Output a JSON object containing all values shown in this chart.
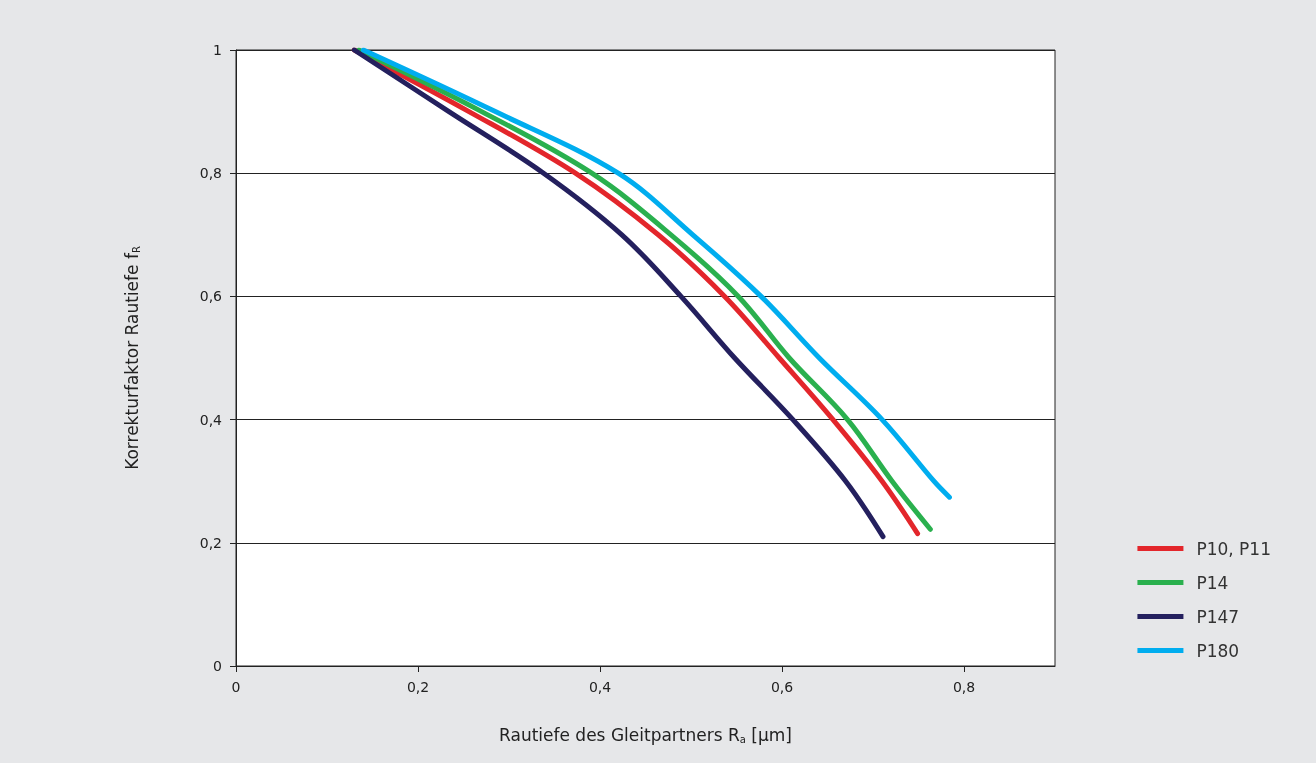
{
  "chart_data": {
    "type": "line",
    "xlabel": "Rautiefe des Gleitpartners R$_{a}$ [µm]",
    "ylabel": "Korrekturfaktor Rautiefe f$_{R}$",
    "xlim": [
      0,
      0.9
    ],
    "xticks": [
      0,
      {
        "value": 0.2,
        "label": "0,2"
      },
      {
        "value": 0.4,
        "label": "0,4"
      },
      {
        "value": 0.6,
        "label": "0,6"
      },
      {
        "value": 0.8,
        "label": "0,8"
      }
    ],
    "ylim": [
      0,
      1
    ],
    "yticks": [
      0,
      {
        "value": 0.2,
        "label": "0,2"
      },
      {
        "value": 0.4,
        "label": "0,4"
      },
      {
        "value": 0.6,
        "label": "0,6"
      },
      {
        "value": 0.8,
        "label": "0,8"
      },
      1
    ],
    "grid": "y",
    "legend": "right",
    "marker": "none",
    "line_style": "solid",
    "series": [
      {
        "name": "P10, P11",
        "color": "#e3262b",
        "x": [
          0.13,
          0.256,
          0.373,
          0.464,
          0.537,
          0.597,
          0.656,
          0.71,
          0.749
        ],
        "values": [
          1,
          0.9,
          0.8,
          0.7,
          0.6,
          0.5,
          0.4,
          0.3,
          0.215
        ]
      },
      {
        "name": "P14",
        "color": "#2ab04e",
        "x": [
          0.135,
          0.27,
          0.391,
          0.478,
          0.552,
          0.608,
          0.672,
          0.721,
          0.763
        ],
        "values": [
          1,
          0.9,
          0.8,
          0.7,
          0.6,
          0.5,
          0.4,
          0.3,
          0.222
        ]
      },
      {
        "name": "P147",
        "color": "#24205e",
        "x": [
          0.13,
          0.234,
          0.338,
          0.424,
          0.489,
          0.548,
          0.612,
          0.67,
          0.711
        ],
        "values": [
          1,
          0.9,
          0.8,
          0.7,
          0.6,
          0.5,
          0.4,
          0.3,
          0.21
        ]
      },
      {
        "name": "P180",
        "color": "#00adef",
        "x": [
          0.14,
          0.285,
          0.42,
          0.502,
          0.577,
          0.641,
          0.71,
          0.767,
          0.784
        ],
        "values": [
          1,
          0.9,
          0.8,
          0.7,
          0.6,
          0.5,
          0.4,
          0.3,
          0.274
        ]
      }
    ]
  }
}
